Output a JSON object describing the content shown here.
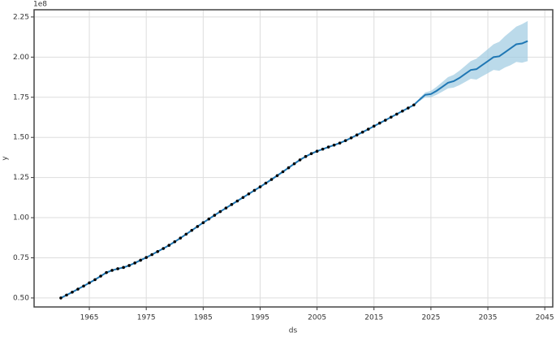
{
  "chart_data": {
    "type": "forecast",
    "x_label": "ds",
    "y_label": "y",
    "y_offset_label": "1e8",
    "xlim": [
      1955.3,
      2046.4
    ],
    "ylim": [
      0.444,
      2.295
    ],
    "xticks": [
      1965,
      1975,
      1985,
      1995,
      2005,
      2015,
      2025,
      2035,
      2045
    ],
    "yticks": [
      {
        "value": 0.5,
        "label": "0.50"
      },
      {
        "value": 0.75,
        "label": "0.75"
      },
      {
        "value": 1.0,
        "label": "1.00"
      },
      {
        "value": 1.25,
        "label": "1.25"
      },
      {
        "value": 1.5,
        "label": "1.50"
      },
      {
        "value": 1.75,
        "label": "1.75"
      },
      {
        "value": 2.0,
        "label": "2.00"
      },
      {
        "value": 2.25,
        "label": "2.25"
      }
    ],
    "grid": true,
    "interval": {
      "color": "#9ecae1",
      "x": [
        2023,
        2024,
        2025,
        2026,
        2027,
        2028,
        2029,
        2030,
        2031,
        2032,
        2033,
        2034,
        2035,
        2036,
        2037,
        2038,
        2039,
        2040,
        2041,
        2042
      ],
      "lower": [
        1.725,
        1.75,
        1.75,
        1.765,
        1.785,
        1.805,
        1.81,
        1.825,
        1.845,
        1.865,
        1.86,
        1.88,
        1.9,
        1.92,
        1.915,
        1.935,
        1.95,
        1.97,
        1.965,
        1.975
      ],
      "upper": [
        1.745,
        1.78,
        1.79,
        1.815,
        1.845,
        1.875,
        1.89,
        1.915,
        1.945,
        1.975,
        1.99,
        2.02,
        2.05,
        2.08,
        2.095,
        2.13,
        2.16,
        2.19,
        2.205,
        2.225
      ]
    },
    "forecast": {
      "color": "#1f77b4",
      "x": [
        1960,
        1961,
        1962,
        1963,
        1964,
        1965,
        1966,
        1967,
        1968,
        1969,
        1970,
        1971,
        1972,
        1973,
        1974,
        1975,
        1976,
        1977,
        1978,
        1979,
        1980,
        1981,
        1982,
        1983,
        1984,
        1985,
        1986,
        1987,
        1988,
        1989,
        1990,
        1991,
        1992,
        1993,
        1994,
        1995,
        1996,
        1997,
        1998,
        1999,
        2000,
        2001,
        2002,
        2003,
        2004,
        2005,
        2006,
        2007,
        2008,
        2009,
        2010,
        2011,
        2012,
        2013,
        2014,
        2015,
        2016,
        2017,
        2018,
        2019,
        2020,
        2021,
        2022,
        2023,
        2024,
        2025,
        2026,
        2027,
        2028,
        2029,
        2030,
        2031,
        2032,
        2033,
        2034,
        2035,
        2036,
        2037,
        2038,
        2039,
        2040,
        2041,
        2042
      ],
      "values": [
        0.5,
        0.518,
        0.536,
        0.555,
        0.574,
        0.594,
        0.614,
        0.636,
        0.658,
        0.672,
        0.682,
        0.69,
        0.702,
        0.718,
        0.735,
        0.752,
        0.77,
        0.789,
        0.808,
        0.828,
        0.85,
        0.873,
        0.897,
        0.921,
        0.945,
        0.969,
        0.992,
        1.015,
        1.038,
        1.06,
        1.082,
        1.104,
        1.126,
        1.148,
        1.17,
        1.192,
        1.215,
        1.238,
        1.262,
        1.286,
        1.311,
        1.336,
        1.36,
        1.381,
        1.399,
        1.414,
        1.427,
        1.44,
        1.452,
        1.465,
        1.48,
        1.497,
        1.515,
        1.533,
        1.551,
        1.57,
        1.589,
        1.607,
        1.626,
        1.645,
        1.664,
        1.683,
        1.702,
        1.735,
        1.765,
        1.77,
        1.79,
        1.815,
        1.84,
        1.85,
        1.87,
        1.895,
        1.92,
        1.925,
        1.95,
        1.975,
        2.0,
        2.005,
        2.03,
        2.055,
        2.08,
        2.085,
        2.1
      ]
    },
    "observed": {
      "color": "#000000",
      "x": [
        1960,
        1961,
        1962,
        1963,
        1964,
        1965,
        1966,
        1967,
        1968,
        1969,
        1970,
        1971,
        1972,
        1973,
        1974,
        1975,
        1976,
        1977,
        1978,
        1979,
        1980,
        1981,
        1982,
        1983,
        1984,
        1985,
        1986,
        1987,
        1988,
        1989,
        1990,
        1991,
        1992,
        1993,
        1994,
        1995,
        1996,
        1997,
        1998,
        1999,
        2000,
        2001,
        2002,
        2003,
        2004,
        2005,
        2006,
        2007,
        2008,
        2009,
        2010,
        2011,
        2012,
        2013,
        2014,
        2015,
        2016,
        2017,
        2018,
        2019,
        2020,
        2021,
        2022
      ],
      "values": [
        0.5,
        0.518,
        0.536,
        0.555,
        0.574,
        0.594,
        0.614,
        0.636,
        0.658,
        0.672,
        0.682,
        0.69,
        0.702,
        0.718,
        0.735,
        0.752,
        0.77,
        0.789,
        0.808,
        0.828,
        0.85,
        0.873,
        0.897,
        0.921,
        0.945,
        0.969,
        0.992,
        1.015,
        1.038,
        1.06,
        1.082,
        1.104,
        1.126,
        1.148,
        1.17,
        1.192,
        1.215,
        1.238,
        1.262,
        1.286,
        1.311,
        1.336,
        1.36,
        1.381,
        1.399,
        1.414,
        1.427,
        1.44,
        1.452,
        1.465,
        1.48,
        1.497,
        1.515,
        1.533,
        1.551,
        1.57,
        1.589,
        1.607,
        1.626,
        1.645,
        1.664,
        1.683,
        1.702
      ]
    }
  }
}
